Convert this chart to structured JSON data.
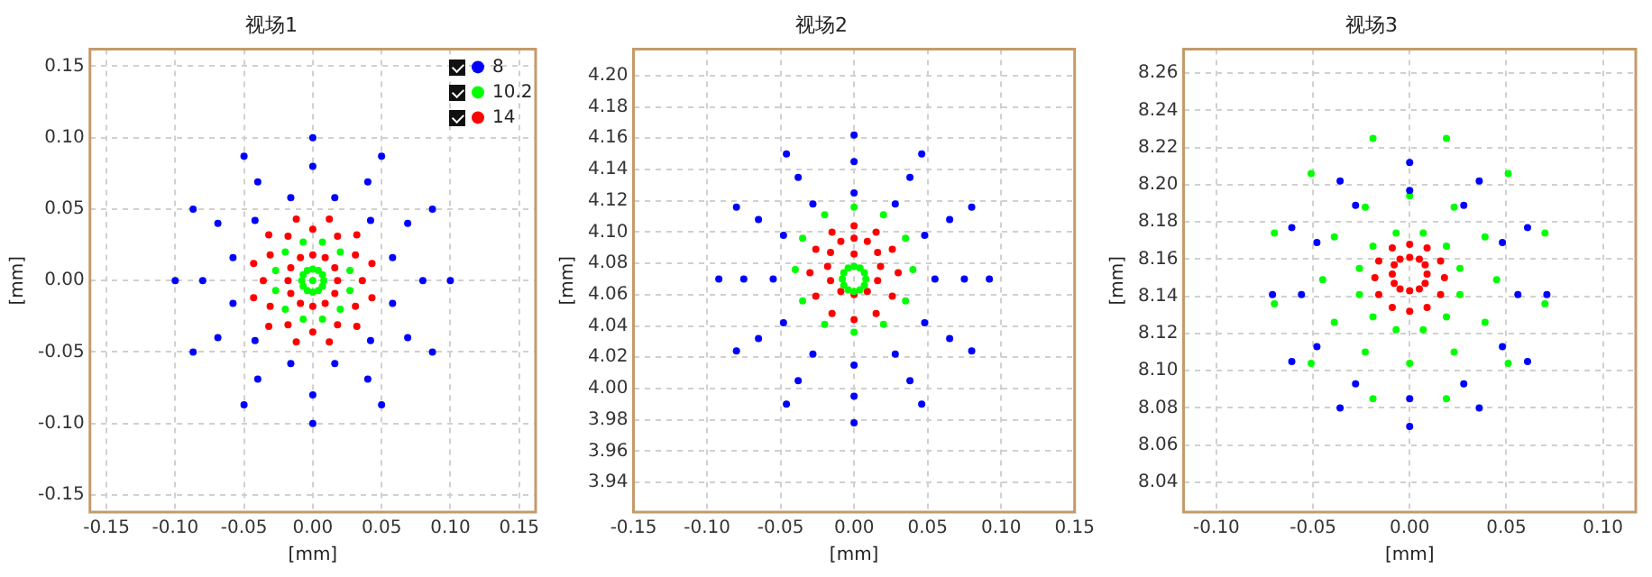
{
  "chart_data": [
    {
      "type": "scatter",
      "title": "视场1",
      "xlabel": "[mm]",
      "ylabel": "[mm]",
      "marker": "circle",
      "grid": true,
      "legend": "top right",
      "xlim": [
        -0.162,
        0.162
      ],
      "ylim": [
        -0.162,
        0.162
      ],
      "xticks": [
        {
          "value": -0.15,
          "label": "-0.15"
        },
        {
          "value": -0.1,
          "label": "-0.10"
        },
        {
          "value": -0.05,
          "label": "-0.05"
        },
        {
          "value": 0,
          "label": "0.00"
        },
        {
          "value": 0.05,
          "label": "0.05"
        },
        {
          "value": 0.1,
          "label": "0.10"
        },
        {
          "value": 0.15,
          "label": "0.15"
        }
      ],
      "yticks": [
        {
          "value": -0.15,
          "label": "-0.15"
        },
        {
          "value": -0.1,
          "label": "-0.10"
        },
        {
          "value": -0.05,
          "label": "-0.05"
        },
        {
          "value": 0,
          "label": "0.00"
        },
        {
          "value": 0.05,
          "label": "0.05"
        },
        {
          "value": 0.1,
          "label": "0.10"
        },
        {
          "value": 0.15,
          "label": "0.15"
        }
      ],
      "series": [
        {
          "name": "8",
          "color": "#0000ff",
          "x": [
            0.1,
            0.087,
            0.05,
            0,
            -0.05,
            -0.087,
            -0.1,
            -0.087,
            -0.05,
            0,
            0.05,
            0.087,
            0.08,
            0.069,
            0.04,
            0,
            -0.04,
            -0.069,
            -0.08,
            -0.069,
            -0.04,
            0,
            0.04,
            0.069,
            0.058,
            0.042,
            0.016,
            -0.016,
            -0.042,
            -0.058,
            -0.058,
            -0.042,
            -0.016,
            0.016,
            0.042,
            0.058
          ],
          "values": [
            0,
            0.05,
            0.087,
            0.1,
            0.087,
            0.05,
            0,
            -0.05,
            -0.087,
            -0.1,
            -0.087,
            -0.05,
            0,
            0.04,
            0.069,
            0.08,
            0.069,
            0.04,
            0,
            -0.04,
            -0.069,
            -0.08,
            -0.069,
            -0.04,
            0.016,
            0.042,
            0.058,
            0.058,
            0.042,
            0.016,
            -0.016,
            -0.042,
            -0.058,
            -0.058,
            -0.042,
            -0.016
          ]
        },
        {
          "name": "10.2",
          "color": "#00ff00",
          "x": [
            0.027,
            0.02,
            0.007,
            -0.007,
            -0.02,
            -0.027,
            -0.027,
            -0.02,
            -0.007,
            0.007,
            0.02,
            0.027,
            0.008,
            0.007,
            0.004,
            0,
            -0.004,
            -0.007,
            -0.008,
            -0.007,
            -0.004,
            0,
            0.004,
            0.007,
            0
          ],
          "values": [
            0.007,
            0.02,
            0.027,
            0.027,
            0.02,
            0.007,
            -0.007,
            -0.02,
            -0.027,
            -0.027,
            -0.02,
            -0.007,
            0,
            0.004,
            0.007,
            0.008,
            0.007,
            0.004,
            0,
            -0.004,
            -0.007,
            -0.008,
            -0.007,
            -0.004,
            0
          ]
        },
        {
          "name": "14",
          "color": "#ff0000",
          "x": [
            0.043,
            0.032,
            0.012,
            -0.012,
            -0.032,
            -0.043,
            -0.043,
            -0.032,
            -0.012,
            0.012,
            0.032,
            0.043,
            0.036,
            0.031,
            0.018,
            0,
            -0.018,
            -0.031,
            -0.036,
            -0.031,
            -0.018,
            0,
            0.018,
            0.031,
            0.018,
            0.016,
            0.009,
            0,
            -0.009,
            -0.016,
            -0.018,
            -0.016,
            -0.009,
            0,
            0.009,
            0.016
          ],
          "values": [
            0.012,
            0.032,
            0.043,
            0.043,
            0.032,
            0.012,
            -0.012,
            -0.032,
            -0.043,
            -0.043,
            -0.032,
            -0.012,
            0,
            0.018,
            0.031,
            0.036,
            0.031,
            0.018,
            0,
            -0.018,
            -0.031,
            -0.036,
            -0.031,
            -0.018,
            0,
            0.009,
            0.016,
            0.018,
            0.016,
            0.009,
            0,
            -0.009,
            -0.016,
            -0.018,
            -0.016,
            -0.009
          ]
        }
      ]
    },
    {
      "type": "scatter",
      "title": "视场2",
      "xlabel": "[mm]",
      "ylabel": "[mm]",
      "marker": "circle",
      "grid": true,
      "xlim": [
        -0.15,
        0.15
      ],
      "ylim": [
        3.921,
        4.217
      ],
      "xticks": [
        {
          "value": -0.15,
          "label": "-0.15"
        },
        {
          "value": -0.1,
          "label": "-0.10"
        },
        {
          "value": -0.05,
          "label": "-0.05"
        },
        {
          "value": 0,
          "label": "0.00"
        },
        {
          "value": 0.05,
          "label": "0.05"
        },
        {
          "value": 0.1,
          "label": "0.10"
        },
        {
          "value": 0.15,
          "label": "0.15"
        }
      ],
      "yticks": [
        3.94,
        3.96,
        3.98,
        {
          "value": 4,
          "label": "4.00"
        },
        4.02,
        4.04,
        4.06,
        4.08,
        {
          "value": 4.1,
          "label": "4.10"
        },
        4.12,
        4.14,
        4.16,
        4.18,
        {
          "value": 4.2,
          "label": "4.20"
        }
      ],
      "series": [
        {
          "color": "#0000ff",
          "x": [
            0.092,
            0.08,
            0.046,
            0,
            -0.046,
            -0.08,
            -0.092,
            -0.08,
            -0.046,
            0,
            0.046,
            0.08,
            0.075,
            0.065,
            0.038,
            0,
            -0.038,
            -0.065,
            -0.075,
            -0.065,
            -0.038,
            0,
            0.038,
            0.065,
            0.055,
            0.048,
            0.028,
            0,
            -0.028,
            -0.048,
            -0.055,
            -0.048,
            -0.028,
            0,
            0.028,
            0.048
          ],
          "values": [
            4.07,
            4.116,
            4.15,
            4.162,
            4.15,
            4.116,
            4.07,
            4.024,
            3.99,
            3.978,
            3.99,
            4.024,
            4.07,
            4.108,
            4.135,
            4.145,
            4.135,
            4.108,
            4.07,
            4.032,
            4.005,
            3.995,
            4.005,
            4.032,
            4.07,
            4.098,
            4.118,
            4.125,
            4.118,
            4.098,
            4.07,
            4.042,
            4.022,
            4.015,
            4.022,
            4.042
          ]
        },
        {
          "color": "#00ff00",
          "x": [
            0.04,
            0.035,
            0.02,
            0,
            -0.02,
            -0.035,
            -0.04,
            -0.035,
            -0.02,
            0,
            0.02,
            0.035,
            0.008,
            0.007,
            0.004,
            0,
            -0.004,
            -0.007,
            -0.008,
            -0.007,
            -0.004,
            0,
            0.004,
            0.007
          ],
          "values": [
            4.076,
            4.096,
            4.111,
            4.116,
            4.111,
            4.096,
            4.076,
            4.056,
            4.041,
            4.036,
            4.041,
            4.056,
            4.07,
            4.074,
            4.077,
            4.078,
            4.077,
            4.074,
            4.07,
            4.066,
            4.063,
            4.062,
            4.063,
            4.066
          ]
        },
        {
          "color": "#ff0000",
          "x": [
            0.03,
            0.026,
            0.015,
            0,
            -0.015,
            -0.026,
            -0.03,
            -0.026,
            -0.015,
            0,
            0.015,
            0.026,
            0.018,
            0.016,
            0.009,
            0,
            -0.009,
            -0.016,
            -0.018,
            -0.016,
            -0.009,
            0,
            0.009,
            0.016,
            0
          ],
          "values": [
            4.074,
            4.089,
            4.1,
            4.104,
            4.1,
            4.089,
            4.074,
            4.059,
            4.048,
            4.044,
            4.048,
            4.059,
            4.078,
            4.087,
            4.094,
            4.096,
            4.094,
            4.087,
            4.078,
            4.069,
            4.062,
            4.06,
            4.062,
            4.069,
            4.086
          ]
        }
      ]
    },
    {
      "type": "scatter",
      "title": "视场3",
      "xlabel": "[mm]",
      "ylabel": "[mm]",
      "marker": "circle",
      "grid": true,
      "xlim": [
        -0.117,
        0.117
      ],
      "ylim": [
        8.024,
        8.273
      ],
      "xticks": [
        {
          "value": -0.1,
          "label": "-0.10"
        },
        {
          "value": -0.05,
          "label": "-0.05"
        },
        {
          "value": 0,
          "label": "0.00"
        },
        {
          "value": 0.05,
          "label": "0.05"
        },
        {
          "value": 0.1,
          "label": "0.10"
        }
      ],
      "yticks": [
        8.04,
        8.06,
        8.08,
        {
          "value": 8.1,
          "label": "8.10"
        },
        8.12,
        8.14,
        8.16,
        8.18,
        {
          "value": 8.2,
          "label": "8.20"
        },
        8.22,
        8.24,
        8.26
      ],
      "series": [
        {
          "color": "#0000ff",
          "x": [
            0.071,
            0.061,
            0.036,
            0,
            -0.036,
            -0.061,
            -0.071,
            -0.061,
            -0.036,
            0,
            0.036,
            0.061,
            0.056,
            0.048,
            0.028,
            0,
            -0.028,
            -0.048,
            -0.056,
            -0.048,
            -0.028,
            0,
            0.028,
            0.048
          ],
          "values": [
            8.141,
            8.177,
            8.202,
            8.212,
            8.202,
            8.177,
            8.141,
            8.105,
            8.08,
            8.07,
            8.08,
            8.105,
            8.141,
            8.169,
            8.189,
            8.197,
            8.189,
            8.169,
            8.141,
            8.113,
            8.093,
            8.085,
            8.093,
            8.113
          ]
        },
        {
          "color": "#00ff00",
          "x": [
            0.07,
            0.051,
            0.019,
            -0.019,
            -0.051,
            -0.07,
            -0.07,
            -0.051,
            -0.019,
            0.019,
            0.051,
            0.07,
            0.045,
            0.039,
            0.023,
            0,
            -0.023,
            -0.039,
            -0.045,
            -0.039,
            -0.023,
            0,
            0.023,
            0.039,
            0.026,
            0.019,
            0.007,
            -0.007,
            -0.019,
            -0.026,
            -0.026,
            -0.019,
            -0.007,
            0.007,
            0.019,
            0.026
          ],
          "values": [
            8.174,
            8.206,
            8.225,
            8.225,
            8.206,
            8.174,
            8.136,
            8.104,
            8.085,
            8.085,
            8.104,
            8.136,
            8.149,
            8.172,
            8.188,
            8.194,
            8.188,
            8.172,
            8.149,
            8.126,
            8.11,
            8.104,
            8.11,
            8.126,
            8.155,
            8.167,
            8.174,
            8.174,
            8.167,
            8.155,
            8.141,
            8.129,
            8.122,
            8.122,
            8.129,
            8.141
          ]
        },
        {
          "color": "#ff0000",
          "x": [
            0.018,
            0.016,
            0.009,
            0,
            -0.009,
            -0.016,
            -0.018,
            -0.016,
            -0.009,
            0,
            0.009,
            0.016,
            0.009,
            0.008,
            0.005,
            0,
            -0.005,
            -0.008,
            -0.009,
            -0.008,
            -0.005,
            0,
            0.005,
            0.008
          ],
          "values": [
            8.15,
            8.159,
            8.166,
            8.168,
            8.166,
            8.159,
            8.15,
            8.141,
            8.134,
            8.132,
            8.134,
            8.141,
            8.152,
            8.157,
            8.16,
            8.161,
            8.16,
            8.157,
            8.152,
            8.147,
            8.144,
            8.143,
            8.144,
            8.147
          ]
        }
      ]
    }
  ]
}
